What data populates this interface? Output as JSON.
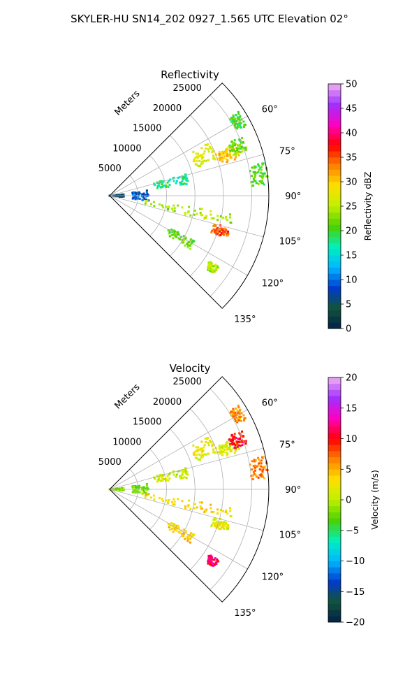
{
  "figure": {
    "title": "SKYLER-HU  SN14_202  0927_1.565 UTC Elevation 02°"
  },
  "chart_data": [
    {
      "type": "polar-sector",
      "title": "Reflectivity",
      "radial_label": "Meters",
      "theta_range_deg": [
        45,
        135
      ],
      "theta_ticks": [
        "60°",
        "75°",
        "90°",
        "105°",
        "120°",
        "135°"
      ],
      "theta_tick_values": [
        60,
        75,
        90,
        105,
        120,
        135
      ],
      "r_range": [
        0,
        28000
      ],
      "r_ticks": [
        "5000",
        "10000",
        "15000",
        "20000",
        "25000"
      ],
      "r_tick_values": [
        5000,
        10000,
        15000,
        20000,
        25000
      ],
      "grid": true,
      "colorbar": {
        "label": "Reflectivity dBZ",
        "min": 0,
        "max": 50,
        "ticks": [
          "0",
          "5",
          "10",
          "15",
          "20",
          "25",
          "30",
          "35",
          "40",
          "45",
          "50"
        ],
        "tick_values": [
          0,
          5,
          10,
          15,
          20,
          25,
          30,
          35,
          40,
          45,
          50
        ],
        "colors": [
          "#00204a",
          "#12543a",
          "#003ad0",
          "#00b8ff",
          "#00f0c0",
          "#4bd000",
          "#c0f000",
          "#ffe000",
          "#ff8000",
          "#ff0000",
          "#ff00c0",
          "#a030ff",
          "#f0b0f0"
        ]
      },
      "echo_features": [
        {
          "theta": [
            57,
            63
          ],
          "r": [
            25000,
            27000
          ],
          "value": 20
        },
        {
          "theta": [
            62,
            72
          ],
          "r": [
            16000,
            20000
          ],
          "value": 27
        },
        {
          "theta": [
            68,
            74
          ],
          "r": [
            20000,
            24000
          ],
          "value": 30
        },
        {
          "theta": [
            66,
            72
          ],
          "r": [
            22500,
            25500
          ],
          "value": 22
        },
        {
          "theta": [
            74,
            82
          ],
          "r": [
            8000,
            14000
          ],
          "value": 18
        },
        {
          "theta": [
            78,
            86
          ],
          "r": [
            25000,
            28000
          ],
          "value": 20
        },
        {
          "theta": [
            82,
            98
          ],
          "r": [
            4000,
            7000
          ],
          "value": 9
        },
        {
          "theta": [
            84,
            96
          ],
          "r": [
            0,
            2500
          ],
          "value": 6
        },
        {
          "theta": [
            98,
            104
          ],
          "r": [
            6000,
            22000
          ],
          "value": 24
        },
        {
          "theta": [
            105,
            110
          ],
          "r": [
            19000,
            22000
          ],
          "value": 35
        },
        {
          "theta": [
            118,
            124
          ],
          "r": [
            12000,
            17000
          ],
          "value": 22
        },
        {
          "theta": [
            123,
            127
          ],
          "r": [
            21000,
            23000
          ],
          "value": 25
        }
      ]
    },
    {
      "type": "polar-sector",
      "title": "Velocity",
      "radial_label": "Meters",
      "theta_range_deg": [
        45,
        135
      ],
      "theta_ticks": [
        "60°",
        "75°",
        "90°",
        "105°",
        "120°",
        "135°"
      ],
      "theta_tick_values": [
        60,
        75,
        90,
        105,
        120,
        135
      ],
      "r_range": [
        0,
        28000
      ],
      "r_ticks": [
        "5000",
        "10000",
        "15000",
        "20000",
        "25000"
      ],
      "r_tick_values": [
        5000,
        10000,
        15000,
        20000,
        25000
      ],
      "grid": true,
      "colorbar": {
        "label": "Velocity (m/s)",
        "min": -20,
        "max": 20,
        "ticks": [
          "−20",
          "−15",
          "−10",
          "−5",
          "0",
          "5",
          "10",
          "15",
          "20"
        ],
        "tick_values": [
          -20,
          -15,
          -10,
          -5,
          0,
          5,
          10,
          15,
          20
        ],
        "colors": [
          "#00204a",
          "#12543a",
          "#003ad0",
          "#00b8ff",
          "#00f0c0",
          "#4bd000",
          "#c0f000",
          "#ffe000",
          "#ff8000",
          "#ff0000",
          "#ff00c0",
          "#a030ff",
          "#f0b0f0"
        ]
      },
      "echo_features": [
        {
          "theta": [
            57,
            63
          ],
          "r": [
            25000,
            27000
          ],
          "value": 6
        },
        {
          "theta": [
            62,
            72
          ],
          "r": [
            16000,
            20000
          ],
          "value": 2
        },
        {
          "theta": [
            68,
            74
          ],
          "r": [
            20000,
            24000
          ],
          "value": 1
        },
        {
          "theta": [
            66,
            72
          ],
          "r": [
            22500,
            25500
          ],
          "value": 10
        },
        {
          "theta": [
            74,
            82
          ],
          "r": [
            8000,
            14000
          ],
          "value": 1
        },
        {
          "theta": [
            78,
            86
          ],
          "r": [
            25000,
            28000
          ],
          "value": 6
        },
        {
          "theta": [
            82,
            98
          ],
          "r": [
            4000,
            7000
          ],
          "value": -2
        },
        {
          "theta": [
            84,
            96
          ],
          "r": [
            0,
            2500
          ],
          "value": -1
        },
        {
          "theta": [
            98,
            104
          ],
          "r": [
            6000,
            22000
          ],
          "value": 3
        },
        {
          "theta": [
            105,
            110
          ],
          "r": [
            19000,
            22000
          ],
          "value": 2
        },
        {
          "theta": [
            118,
            124
          ],
          "r": [
            12000,
            17000
          ],
          "value": 4
        },
        {
          "theta": [
            123,
            127
          ],
          "r": [
            21000,
            23000
          ],
          "value": 12
        }
      ]
    }
  ]
}
